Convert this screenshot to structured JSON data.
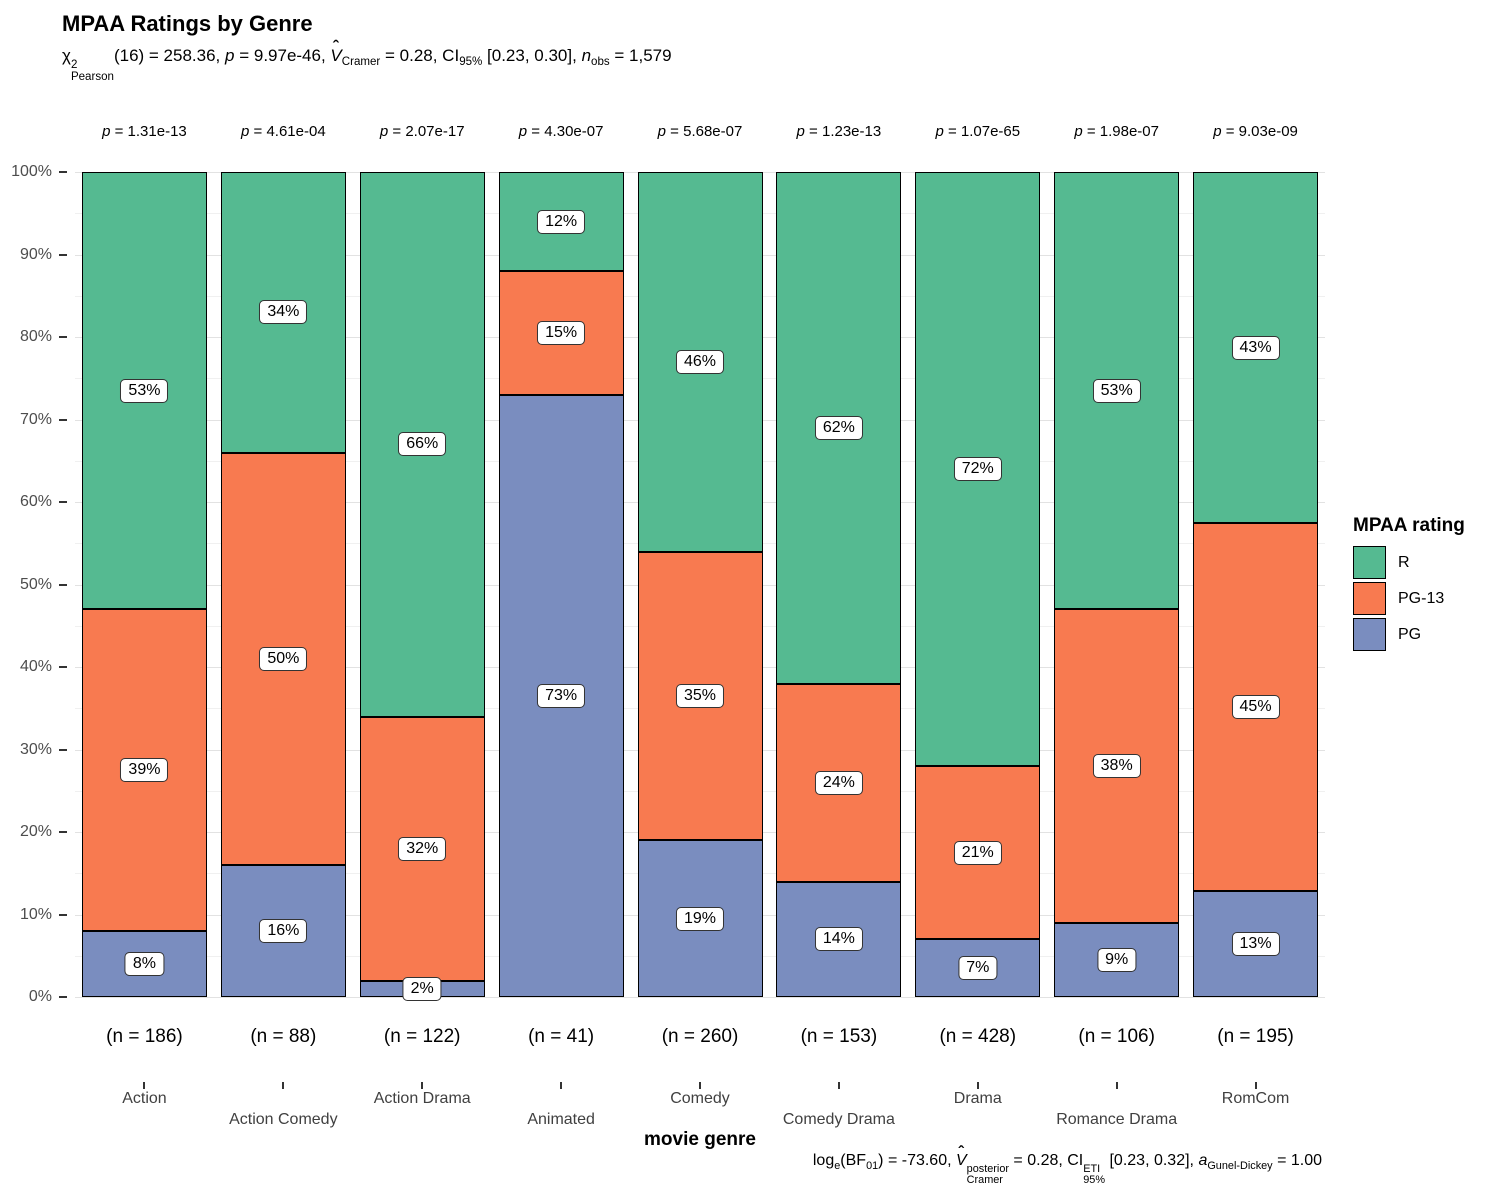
{
  "title": "MPAA Ratings by Genre",
  "subtitle_tokens": [
    {
      "t": "txt",
      "v": "χ"
    },
    {
      "t": "supsub",
      "sup": "2",
      "sub": "Pearson"
    },
    {
      "t": "txt",
      "v": "(16) = 258.36, "
    },
    {
      "t": "it",
      "v": "p"
    },
    {
      "t": "txt",
      "v": " = 9.97e-46, "
    },
    {
      "t": "hat",
      "v": "V"
    },
    {
      "t": "sub",
      "v": "Cramer"
    },
    {
      "t": "txt",
      "v": " = 0.28, CI"
    },
    {
      "t": "sub",
      "v": "95%"
    },
    {
      "t": "txt",
      "v": " [0.23, 0.30], "
    },
    {
      "t": "it",
      "v": "n"
    },
    {
      "t": "sub",
      "v": "obs"
    },
    {
      "t": "txt",
      "v": " = 1,579"
    }
  ],
  "caption_tokens": [
    {
      "t": "txt",
      "v": "log"
    },
    {
      "t": "sub",
      "v": "e"
    },
    {
      "t": "txt",
      "v": "(BF"
    },
    {
      "t": "sub",
      "v": "01"
    },
    {
      "t": "txt",
      "v": ") = -73.60, "
    },
    {
      "t": "hat",
      "v": "V"
    },
    {
      "t": "supsub",
      "sup": "posterior",
      "sub": "Cramer"
    },
    {
      "t": "txt",
      "v": " = 0.28, CI"
    },
    {
      "t": "supsub",
      "sup": "ETI",
      "sub": "95%"
    },
    {
      "t": "txt",
      "v": " [0.23, 0.32], "
    },
    {
      "t": "it",
      "v": "a"
    },
    {
      "t": "sub",
      "v": "Gunel-Dickey"
    },
    {
      "t": "txt",
      "v": " = 1.00"
    }
  ],
  "p_symbol": "p",
  "legend": {
    "title": "MPAA rating",
    "items": [
      {
        "label": "R",
        "color": "#55ba91"
      },
      {
        "label": "PG-13",
        "color": "#f87a50"
      },
      {
        "label": "PG",
        "color": "#7a8dbf"
      }
    ]
  },
  "y_axis": {
    "ticks": [
      "0%",
      "10%",
      "20%",
      "30%",
      "40%",
      "50%",
      "60%",
      "70%",
      "80%",
      "90%",
      "100%"
    ]
  },
  "chart_data": {
    "type": "bar",
    "subtype": "stacked-percent",
    "title": "MPAA Ratings by Genre",
    "xlabel": "movie genre",
    "ylabel": "",
    "ylim": [
      "0%",
      "100%"
    ],
    "grid": "on",
    "legend_position": "right",
    "legend_title": "MPAA rating",
    "categories": [
      "Action",
      "Action Comedy",
      "Action Drama",
      "Animated",
      "Comedy",
      "Comedy Drama",
      "Drama",
      "Romance Drama",
      "RomCom"
    ],
    "series_order_bottom_to_top": [
      "PG",
      "PG-13",
      "R"
    ],
    "series": [
      {
        "name": "PG",
        "color": "#7a8dbf",
        "values": [
          8,
          16,
          2,
          73,
          19,
          14,
          7,
          9,
          13
        ]
      },
      {
        "name": "PG-13",
        "color": "#f87a50",
        "values": [
          39,
          50,
          32,
          15,
          35,
          24,
          21,
          38,
          45
        ]
      },
      {
        "name": "R",
        "color": "#55ba91",
        "values": [
          53,
          34,
          66,
          12,
          46,
          62,
          72,
          53,
          43
        ]
      }
    ],
    "n_labels": [
      "(n = 186)",
      "(n = 88)",
      "(n = 122)",
      "(n = 41)",
      "(n = 260)",
      "(n = 153)",
      "(n = 428)",
      "(n = 106)",
      "(n = 195)"
    ],
    "p_values": [
      "1.31e-13",
      "4.61e-04",
      "2.07e-17",
      "4.30e-07",
      "5.68e-07",
      "1.23e-13",
      "1.07e-65",
      "1.98e-07",
      "9.03e-09"
    ]
  }
}
